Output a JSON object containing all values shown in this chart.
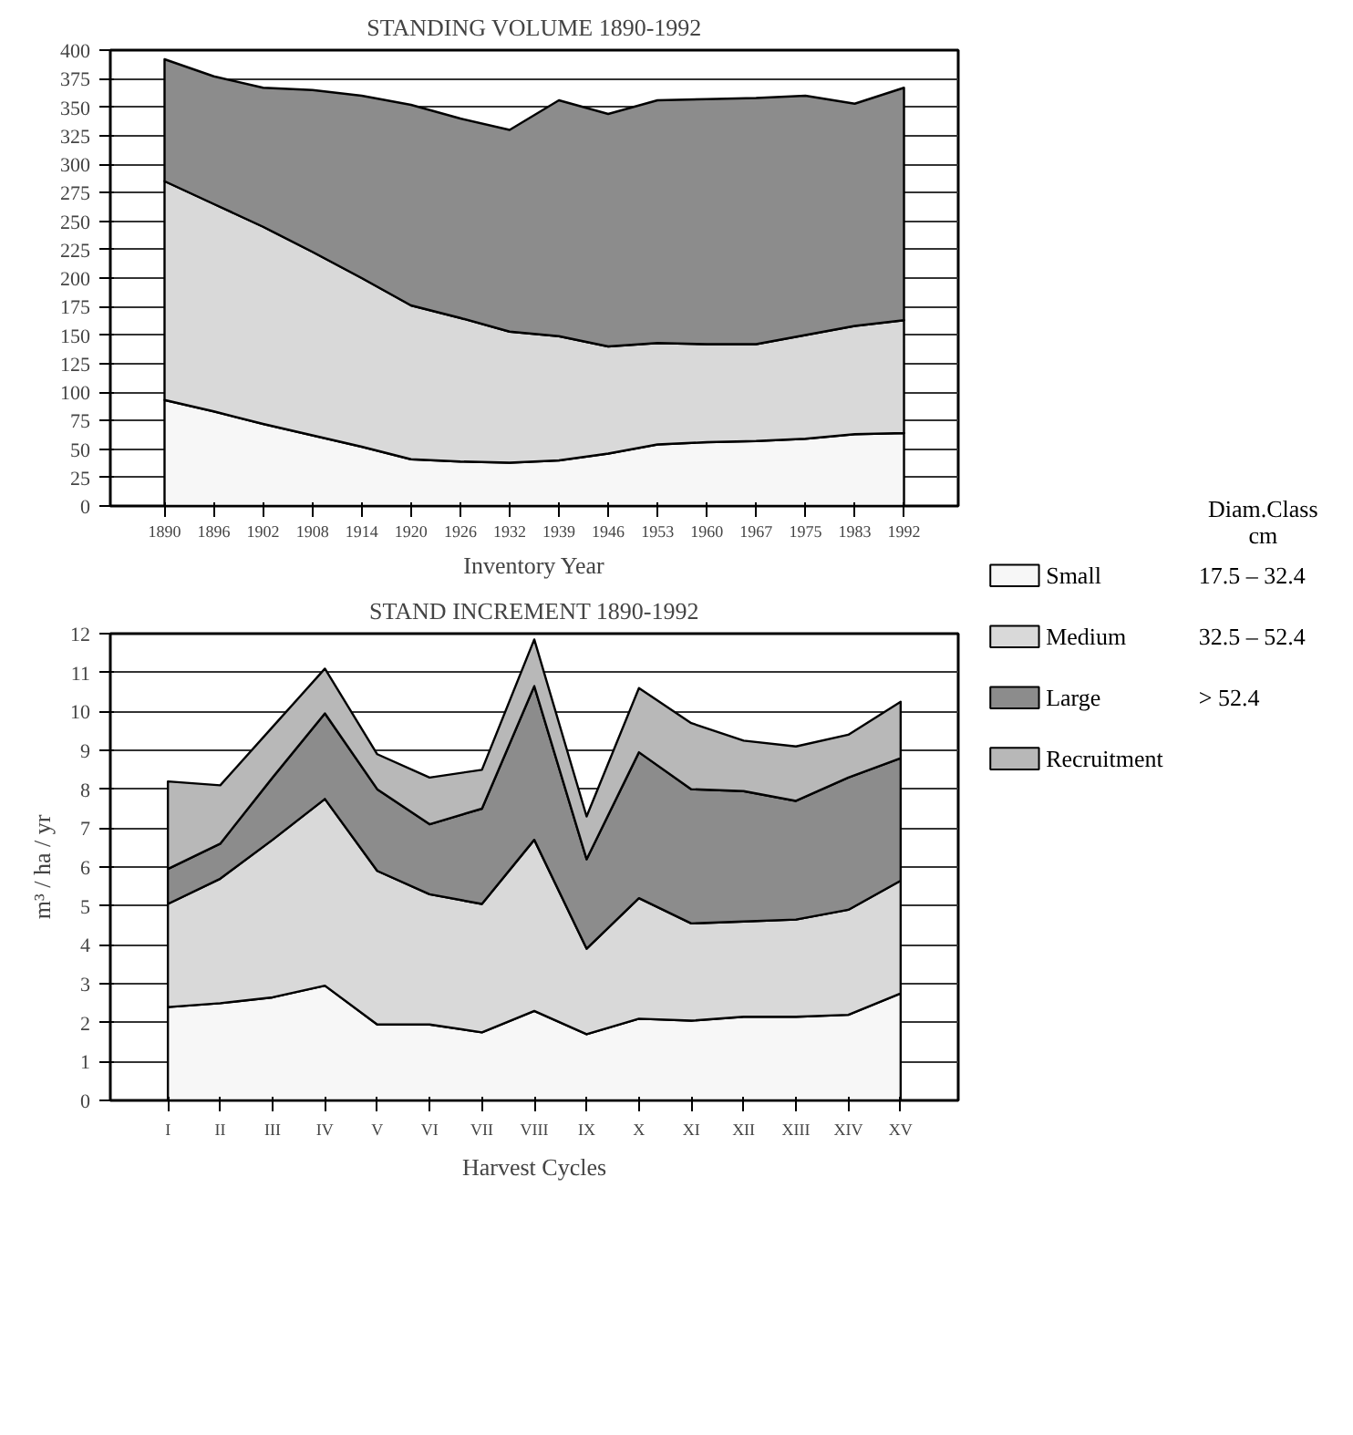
{
  "chart_data": [
    {
      "type": "area",
      "stacked": true,
      "title": "STANDING VOLUME 1890-1992",
      "xlabel": "Inventory Year",
      "categories": [
        "1890",
        "1896",
        "1902",
        "1908",
        "1914",
        "1920",
        "1926",
        "1932",
        "1939",
        "1946",
        "1953",
        "1960",
        "1967",
        "1975",
        "1983",
        "1992"
      ],
      "series": [
        {
          "color": "#f7f7f7",
          "values": [
            93,
            83,
            72,
            62,
            52,
            41,
            39,
            38,
            40,
            46,
            54,
            56,
            57,
            59,
            63,
            64
          ]
        },
        {
          "color": "#d9d9d9",
          "values": [
            192,
            182,
            173,
            161,
            148,
            135,
            126,
            115,
            109,
            94,
            89,
            86,
            85,
            91,
            95,
            99
          ]
        },
        {
          "color": "#8c8c8c",
          "values": [
            107,
            112,
            122,
            142,
            160,
            176,
            175,
            177,
            207,
            204,
            213,
            215,
            216,
            210,
            195,
            204
          ]
        }
      ],
      "ylim": [
        0,
        400
      ],
      "yticks": [
        0,
        25,
        50,
        75,
        100,
        125,
        150,
        175,
        200,
        225,
        250,
        275,
        300,
        325,
        350,
        375,
        400
      ],
      "grid": "y",
      "legend": false
    },
    {
      "type": "area",
      "stacked": true,
      "title": "STAND INCREMENT 1890-1992",
      "xlabel": "Harvest Cycles",
      "ylabel": "m³ / ha / yr",
      "categories": [
        "I",
        "II",
        "III",
        "IV",
        "V",
        "VI",
        "VII",
        "VIII",
        "IX",
        "X",
        "XI",
        "XII",
        "XIII",
        "XIV",
        "XV"
      ],
      "series": [
        {
          "name": "Small",
          "color": "#f7f7f7",
          "values": [
            2.4,
            2.5,
            2.65,
            2.95,
            1.95,
            1.95,
            1.75,
            2.3,
            1.7,
            2.1,
            2.05,
            2.15,
            2.15,
            2.2,
            2.75
          ]
        },
        {
          "name": "Medium",
          "color": "#d9d9d9",
          "values": [
            2.65,
            3.2,
            4.05,
            4.8,
            3.95,
            3.35,
            3.3,
            4.4,
            2.2,
            3.1,
            2.5,
            2.45,
            2.5,
            2.7,
            2.9
          ]
        },
        {
          "name": "Large",
          "color": "#8c8c8c",
          "values": [
            0.9,
            0.9,
            1.6,
            2.2,
            2.1,
            1.8,
            2.45,
            3.95,
            2.3,
            3.75,
            3.45,
            3.35,
            3.05,
            3.4,
            3.15
          ]
        },
        {
          "name": "Recruitment",
          "color": "#b8b8b8",
          "values": [
            2.25,
            1.5,
            1.3,
            1.15,
            0.9,
            1.2,
            1.0,
            1.2,
            1.1,
            1.65,
            1.7,
            1.3,
            1.4,
            1.1,
            1.45
          ]
        }
      ],
      "ylim": [
        0,
        12
      ],
      "yticks": [
        0,
        1,
        2,
        3,
        4,
        5,
        6,
        7,
        8,
        9,
        10,
        11,
        12
      ],
      "grid": "y",
      "legend": "right",
      "legend_title": "Diam.Class cm",
      "annotations": [
        "17.5 – 32.4",
        "32.5 – 52.4",
        "> 52.4"
      ]
    }
  ]
}
